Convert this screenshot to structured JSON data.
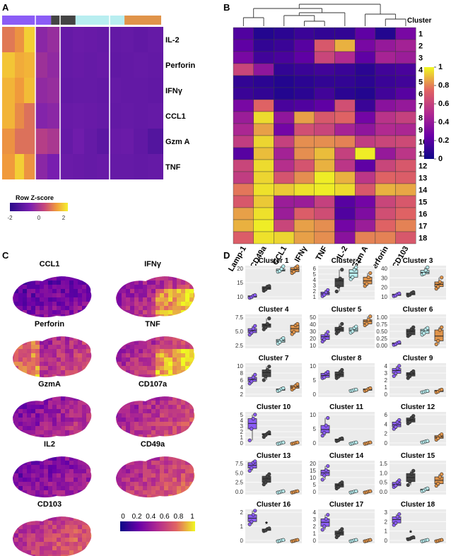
{
  "panelA": {
    "letter": "A",
    "group_colors": [
      "#8b5cf6",
      "#444444",
      "#b8eef0",
      "#e0944a"
    ],
    "genes": [
      "IL-2",
      "Perforin",
      "IFNγ",
      "CCL1",
      "Gzm A",
      "TNF"
    ],
    "legend_title": "Row Z-score",
    "legend_ticks": [
      "-2",
      "0",
      "2"
    ]
  },
  "panelB": {
    "letter": "B",
    "cluster_header": "Cluster",
    "columns": [
      "Lamp-1",
      "CD49a",
      "CCL1",
      "IFNγ",
      "TNF",
      "IL-2",
      "Gzm A",
      "Perforin",
      "CD103"
    ],
    "clusters": [
      "1",
      "2",
      "3",
      "4",
      "5",
      "6",
      "7",
      "8",
      "9",
      "10",
      "11",
      "12",
      "13",
      "14",
      "15",
      "16",
      "17",
      "18"
    ],
    "colorbar_ticks": [
      "1",
      "0.8",
      "0.6",
      "0.4",
      "0.2",
      "0"
    ]
  },
  "panelC": {
    "letter": "C",
    "maps": [
      "CCL1",
      "IFNγ",
      "Perforin",
      "TNF",
      "GzmA",
      "CD107a",
      "IL2",
      "CD49a",
      "CD103"
    ],
    "colorbar_ticks": [
      "0",
      "0.2",
      "0.4",
      "0.6",
      "0.8",
      "1"
    ]
  },
  "panelD": {
    "letter": "D",
    "group_colors": [
      "#8b5cf6",
      "#444444",
      "#b8eef0",
      "#e0944a"
    ],
    "star": "*",
    "panels": [
      {
        "title": "Cluster 1",
        "ticks": [
          "20",
          "15",
          "10"
        ]
      },
      {
        "title": "Cluster 2",
        "ticks": [
          "6",
          "5",
          "4",
          "3",
          "2",
          "1"
        ]
      },
      {
        "title": "Cluster 3",
        "ticks": [
          "40",
          "30",
          "20",
          "10"
        ]
      },
      {
        "title": "Cluster 4",
        "ticks": [
          "7.5",
          "5.0",
          "2.5"
        ]
      },
      {
        "title": "Cluster 5",
        "ticks": [
          "50",
          "40",
          "30",
          "20",
          "10"
        ]
      },
      {
        "title": "Cluster 6",
        "ticks": [
          "1.00",
          "0.75",
          "0.50",
          "0.25",
          "0.00"
        ]
      },
      {
        "title": "Cluster 7",
        "ticks": [
          "10",
          "8",
          "6",
          "4",
          "2"
        ]
      },
      {
        "title": "Cluster 8",
        "ticks": [
          "10",
          "5",
          "0"
        ]
      },
      {
        "title": "Cluster 9",
        "ticks": [
          "4",
          "3",
          "2",
          "1",
          "0"
        ]
      },
      {
        "title": "Cluster 10",
        "ticks": [
          "5",
          "4",
          "3",
          "2",
          "1",
          "0"
        ]
      },
      {
        "title": "Cluster 11",
        "ticks": [
          "10",
          "5",
          "0"
        ]
      },
      {
        "title": "Cluster 12",
        "ticks": [
          "6",
          "4",
          "2",
          "0"
        ]
      },
      {
        "title": "Cluster 13",
        "ticks": [
          "7.5",
          "5.0",
          "2.5",
          "0.0"
        ]
      },
      {
        "title": "Cluster 14",
        "ticks": [
          "20",
          "15",
          "10",
          "5",
          "0"
        ]
      },
      {
        "title": "Cluster 15",
        "ticks": [
          "1.5",
          "1.0",
          "0.5",
          "0.0"
        ]
      },
      {
        "title": "Cluster 16",
        "ticks": [
          "2",
          "1",
          "0"
        ]
      },
      {
        "title": "Cluster 17",
        "ticks": [
          "4",
          "3",
          "2",
          "1",
          "0"
        ]
      },
      {
        "title": "Cluster 18",
        "ticks": [
          "3",
          "2",
          "1",
          "0"
        ]
      }
    ]
  }
}
